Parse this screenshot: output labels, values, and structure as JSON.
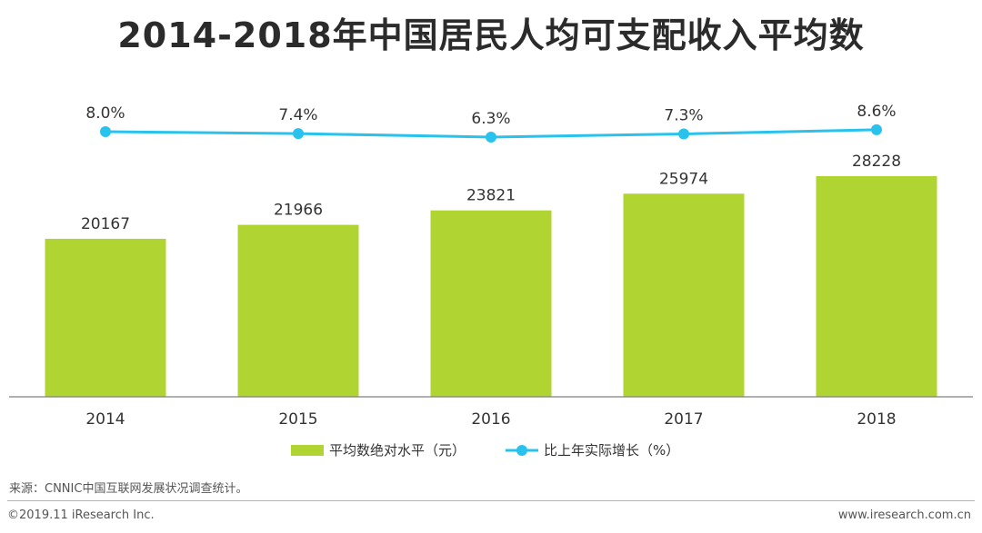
{
  "chart_data": {
    "type": "bar+line",
    "title": "2014-2018年中国居民人均可支配收入平均数",
    "categories": [
      "2014",
      "2015",
      "2016",
      "2017",
      "2018"
    ],
    "series": [
      {
        "name": "平均数绝对水平（元）",
        "type": "bar",
        "values": [
          20167,
          21966,
          23821,
          25974,
          28228
        ],
        "labels": [
          "20167",
          "21966",
          "23821",
          "25974",
          "28228"
        ],
        "color": "#b0d432"
      },
      {
        "name": "比上年实际增长（%）",
        "type": "line",
        "values": [
          8.0,
          7.4,
          6.3,
          7.3,
          8.6
        ],
        "labels": [
          "8.0%",
          "7.4%",
          "6.3%",
          "7.3%",
          "8.6%"
        ],
        "color": "#29c2ec"
      }
    ],
    "legend_position": "bottom"
  },
  "source": "来源：CNNIC中国互联网发展状况调查统计。",
  "copyright": "©2019.11 iResearch Inc.",
  "website": "www.iresearch.com.cn"
}
